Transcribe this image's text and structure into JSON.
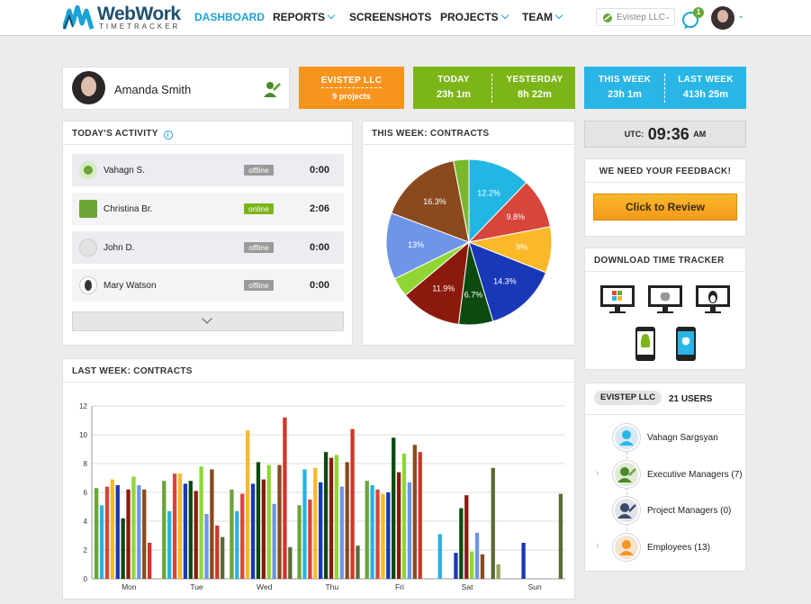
{
  "app": {
    "logo_title": "WebWork",
    "logo_subtitle": "TIMETRACKER"
  },
  "nav": {
    "dashboard": "DASHBOARD",
    "reports": "REPORTS",
    "screenshots": "SCREENSHOTS",
    "projects": "PROJECTS",
    "team": "TEAM"
  },
  "header": {
    "company": "Evistep LLC",
    "notification_count": "1"
  },
  "profile": {
    "name": "Amanda  Smith"
  },
  "company_box": {
    "label": "EVISTEP LLC",
    "projects": "9  projects"
  },
  "today_box": {
    "today_label": "TODAY",
    "today_value": "23h  1m",
    "yesterday_label": "YESTERDAY",
    "yesterday_value": "8h  22m"
  },
  "week_box": {
    "this_label": "THIS WEEK",
    "this_value": "23h  1m",
    "last_label": "LAST WEEK",
    "last_value": "413h  25m"
  },
  "activity": {
    "title": "TODAY'S ACTIVITY",
    "rows": [
      {
        "name": "Vahagn  S.",
        "status": "offline",
        "time": "0:00"
      },
      {
        "name": "Christina  Br.",
        "status": "online",
        "time": "2:06"
      },
      {
        "name": "John  D.",
        "status": "offline",
        "time": "0:00"
      },
      {
        "name": "Mary  Watson",
        "status": "offline",
        "time": "0:00"
      }
    ]
  },
  "clock": {
    "prefix": "UTC:",
    "time": "09:36",
    "suffix": "AM"
  },
  "feedback": {
    "title": "WE NEED YOUR FEEDBACK!",
    "button": "Click  to  Review"
  },
  "download": {
    "title": "DOWNLOAD TIME TRACKER",
    "platforms": [
      "windows-icon",
      "apple-icon",
      "linux-icon",
      "android-icon",
      "ios-icon"
    ]
  },
  "users_panel": {
    "company": "EVISTEP LLC",
    "count": "21  USERS",
    "items": [
      {
        "label": "Vahagn Sargsyan"
      },
      {
        "label": "Executive Managers (7)"
      },
      {
        "label": "Project Managers (0)"
      },
      {
        "label": "Employees (13)"
      }
    ]
  },
  "colors": {
    "accent": "#1aa3d6",
    "orange": "#f7941d",
    "green": "#7cb518",
    "cyan": "#29b6e6",
    "online": "#7cb518",
    "offline": "#9a9a9a"
  },
  "chart_data": [
    {
      "type": "pie",
      "title": "THIS WEEK: CONTRACTS",
      "labels": [
        "12.2%",
        "9.8%",
        "9%",
        "14.3%",
        "6.7%",
        "11.9%",
        "",
        "13%",
        "16.3%",
        ""
      ],
      "values": [
        12.2,
        9.8,
        9.0,
        14.3,
        6.7,
        11.9,
        3.8,
        13.0,
        16.3,
        3.0
      ],
      "colors": [
        "#22b7e3",
        "#d8453a",
        "#fbb829",
        "#1838b8",
        "#0c4a10",
        "#8b1a0d",
        "#8fd633",
        "#6e95e6",
        "#8a4a1e",
        "#7ab72f"
      ]
    },
    {
      "type": "bar",
      "title": "LAST WEEK: CONTRACTS",
      "categories": [
        "Mon",
        "Tue",
        "Wed",
        "Thu",
        "Fri",
        "Sat",
        "Sun"
      ],
      "ylim": [
        0,
        12
      ],
      "yticks": [
        0,
        2,
        4,
        6,
        8,
        10,
        12
      ],
      "grid": true,
      "series": [
        {
          "color": "#6aa535",
          "values": [
            6.3,
            6.8,
            6.2,
            5.1,
            6.8,
            0,
            0
          ]
        },
        {
          "color": "#27b3e3",
          "values": [
            5.1,
            4.7,
            4.7,
            7.6,
            6.5,
            3.1,
            0
          ]
        },
        {
          "color": "#d8453a",
          "values": [
            6.4,
            7.3,
            5.9,
            5.5,
            6.2,
            0,
            0
          ]
        },
        {
          "color": "#fbb829",
          "values": [
            6.9,
            7.3,
            10.3,
            7.7,
            5.9,
            0,
            0
          ]
        },
        {
          "color": "#1838b8",
          "values": [
            6.5,
            6.6,
            6.6,
            6.7,
            6.0,
            1.8,
            2.5
          ]
        },
        {
          "color": "#0c4a10",
          "values": [
            4.2,
            6.8,
            8.1,
            8.8,
            9.8,
            4.9,
            0
          ]
        },
        {
          "color": "#8b1a0d",
          "values": [
            6.2,
            6.1,
            6.9,
            8.4,
            7.4,
            5.8,
            0
          ]
        },
        {
          "color": "#8fd633",
          "values": [
            7.1,
            7.8,
            7.9,
            8.6,
            8.7,
            1.9,
            0
          ]
        },
        {
          "color": "#6e95e6",
          "values": [
            6.5,
            4.5,
            5.2,
            6.4,
            6.7,
            3.2,
            0
          ]
        },
        {
          "color": "#8a4a1e",
          "values": [
            6.2,
            7.6,
            7.9,
            8.1,
            9.3,
            1.7,
            0
          ]
        },
        {
          "color": "#d0352a",
          "values": [
            2.5,
            3.7,
            11.2,
            10.4,
            8.8,
            0,
            0
          ]
        },
        {
          "color": "#5a6b35",
          "values": [
            0,
            2.9,
            2.2,
            2.3,
            0,
            7.7,
            5.9
          ]
        },
        {
          "color": "#9aa25a",
          "values": [
            0,
            0,
            0,
            0,
            0,
            1.0,
            0
          ]
        }
      ]
    }
  ]
}
